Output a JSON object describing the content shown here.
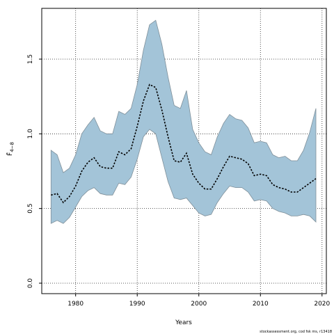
{
  "chart_data": {
    "type": "area",
    "xlabel": "Years",
    "ylabel": "F̄",
    "ylabel_subscript": "4−8",
    "xlim": [
      1974.5,
      2020.7
    ],
    "ylim": [
      -0.07,
      1.84
    ],
    "xticks": [
      1980,
      1990,
      2000,
      2010,
      2020
    ],
    "yticks": [
      0.0,
      0.5,
      1.0,
      1.5
    ],
    "ytick_labels": [
      "0.0",
      "0.5",
      "1.0",
      "1.5"
    ],
    "grid": true,
    "colors": {
      "band": "#a3c4d8",
      "band_edge": "#7f8f99",
      "line": "#000000"
    },
    "x": [
      1976,
      1977,
      1978,
      1979,
      1980,
      1981,
      1982,
      1983,
      1984,
      1985,
      1986,
      1987,
      1988,
      1989,
      1990,
      1991,
      1992,
      1993,
      1994,
      1995,
      1996,
      1997,
      1998,
      1999,
      2000,
      2001,
      2002,
      2003,
      2004,
      2005,
      2006,
      2007,
      2008,
      2009,
      2010,
      2011,
      2012,
      2013,
      2014,
      2015,
      2016,
      2017,
      2018,
      2019
    ],
    "series": [
      {
        "values": [
          0.59,
          0.6,
          0.54,
          0.58,
          0.65,
          0.75,
          0.81,
          0.84,
          0.78,
          0.77,
          0.77,
          0.88,
          0.86,
          0.9,
          1.05,
          1.22,
          1.33,
          1.31,
          1.16,
          0.98,
          0.82,
          0.81,
          0.87,
          0.73,
          0.67,
          0.63,
          0.63,
          0.7,
          0.78,
          0.85,
          0.84,
          0.83,
          0.8,
          0.72,
          0.73,
          0.72,
          0.66,
          0.64,
          0.63,
          0.61,
          0.61,
          0.64,
          0.67,
          0.7
        ]
      },
      {
        "values": [
          0.4,
          0.42,
          0.4,
          0.44,
          0.51,
          0.58,
          0.62,
          0.64,
          0.6,
          0.59,
          0.59,
          0.67,
          0.66,
          0.71,
          0.83,
          0.98,
          1.03,
          1.0,
          0.84,
          0.68,
          0.57,
          0.56,
          0.57,
          0.52,
          0.47,
          0.45,
          0.46,
          0.54,
          0.6,
          0.65,
          0.64,
          0.64,
          0.61,
          0.55,
          0.56,
          0.55,
          0.5,
          0.48,
          0.47,
          0.45,
          0.45,
          0.46,
          0.45,
          0.41
        ]
      },
      {
        "values": [
          0.89,
          0.86,
          0.74,
          0.77,
          0.86,
          1.0,
          1.06,
          1.11,
          1.02,
          1.0,
          1.0,
          1.15,
          1.13,
          1.17,
          1.33,
          1.56,
          1.73,
          1.76,
          1.6,
          1.38,
          1.19,
          1.17,
          1.29,
          1.03,
          0.94,
          0.88,
          0.86,
          0.98,
          1.07,
          1.13,
          1.1,
          1.09,
          1.04,
          0.94,
          0.95,
          0.94,
          0.86,
          0.84,
          0.85,
          0.82,
          0.82,
          0.89,
          1.01,
          1.17
        ]
      }
    ],
    "credit": "stockassessment.org, cod fsk ms, r13418"
  }
}
